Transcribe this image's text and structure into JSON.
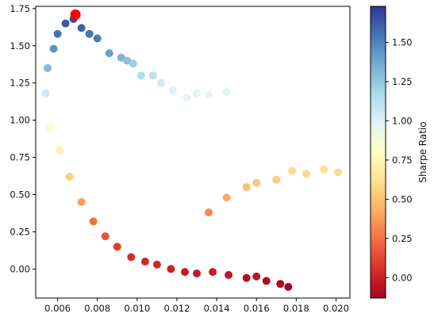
{
  "chart_data": {
    "type": "scatter",
    "title": "",
    "xlabel": "",
    "ylabel": "",
    "xlim": [
      0.0049,
      0.0207
    ],
    "ylim": [
      -0.195,
      1.765
    ],
    "x_ticks": [
      "0.006",
      "0.008",
      "0.010",
      "0.012",
      "0.014",
      "0.016",
      "0.018",
      "0.020"
    ],
    "y_ticks": [
      "0.00",
      "0.25",
      "0.50",
      "0.75",
      "1.00",
      "1.25",
      "1.50",
      "1.75"
    ],
    "grid": false,
    "colormap": "RdYlBu",
    "colorbar": {
      "label": "Sharpe Ratio",
      "range": [
        -0.13,
        1.73
      ],
      "ticks": [
        "0.00",
        "0.25",
        "0.50",
        "0.75",
        "1.00",
        "1.25",
        "1.50"
      ]
    },
    "series": [
      {
        "points": [
          {
            "x": 0.0054,
            "y": 1.18,
            "c": 1.05
          },
          {
            "x": 0.0055,
            "y": 1.35,
            "c": 1.3
          },
          {
            "x": 0.0056,
            "y": 0.95,
            "c": 0.85
          },
          {
            "x": 0.0058,
            "y": 1.48,
            "c": 1.45
          },
          {
            "x": 0.006,
            "y": 1.58,
            "c": 1.55
          },
          {
            "x": 0.0061,
            "y": 0.8,
            "c": 0.72
          },
          {
            "x": 0.0064,
            "y": 1.65,
            "c": 1.63
          },
          {
            "x": 0.0066,
            "y": 0.62,
            "c": 0.55
          },
          {
            "x": 0.0068,
            "y": 1.68,
            "c": 1.66
          },
          {
            "x": 0.0072,
            "y": 1.62,
            "c": 1.6
          },
          {
            "x": 0.0072,
            "y": 0.45,
            "c": 0.38
          },
          {
            "x": 0.0076,
            "y": 1.58,
            "c": 1.54
          },
          {
            "x": 0.0078,
            "y": 0.32,
            "c": 0.25
          },
          {
            "x": 0.008,
            "y": 1.55,
            "c": 1.53
          },
          {
            "x": 0.0084,
            "y": 0.22,
            "c": 0.16
          },
          {
            "x": 0.0086,
            "y": 1.45,
            "c": 1.4
          },
          {
            "x": 0.009,
            "y": 0.15,
            "c": 0.1
          },
          {
            "x": 0.0092,
            "y": 1.42,
            "c": 1.33
          },
          {
            "x": 0.0095,
            "y": 1.4,
            "c": 1.28
          },
          {
            "x": 0.0098,
            "y": 1.38,
            "c": 1.22
          },
          {
            "x": 0.0097,
            "y": 0.08,
            "c": 0.05
          },
          {
            "x": 0.0102,
            "y": 1.3,
            "c": 1.15
          },
          {
            "x": 0.0104,
            "y": 0.05,
            "c": 0.03
          },
          {
            "x": 0.0108,
            "y": 1.3,
            "c": 1.12
          },
          {
            "x": 0.0112,
            "y": 1.25,
            "c": 1.05
          },
          {
            "x": 0.011,
            "y": 0.03,
            "c": 0.02
          },
          {
            "x": 0.0118,
            "y": 1.2,
            "c": 1.0
          },
          {
            "x": 0.0117,
            "y": 0.0,
            "c": 0.0
          },
          {
            "x": 0.0125,
            "y": 1.15,
            "c": 0.95
          },
          {
            "x": 0.0124,
            "y": -0.02,
            "c": -0.02
          },
          {
            "x": 0.013,
            "y": 1.18,
            "c": 0.97
          },
          {
            "x": 0.013,
            "y": -0.03,
            "c": -0.03
          },
          {
            "x": 0.0136,
            "y": 1.17,
            "c": 0.96
          },
          {
            "x": 0.0138,
            "y": -0.02,
            "c": -0.02
          },
          {
            "x": 0.0145,
            "y": 1.19,
            "c": 0.98
          },
          {
            "x": 0.0146,
            "y": -0.04,
            "c": -0.04
          },
          {
            "x": 0.0155,
            "y": -0.06,
            "c": -0.07
          },
          {
            "x": 0.016,
            "y": -0.05,
            "c": -0.06
          },
          {
            "x": 0.0165,
            "y": -0.08,
            "c": -0.09
          },
          {
            "x": 0.0172,
            "y": -0.1,
            "c": -0.1
          },
          {
            "x": 0.0176,
            "y": -0.12,
            "c": -0.12
          },
          {
            "x": 0.0136,
            "y": 0.38,
            "c": 0.32
          },
          {
            "x": 0.0145,
            "y": 0.48,
            "c": 0.42
          },
          {
            "x": 0.0155,
            "y": 0.55,
            "c": 0.48
          },
          {
            "x": 0.016,
            "y": 0.58,
            "c": 0.52
          },
          {
            "x": 0.017,
            "y": 0.6,
            "c": 0.55
          },
          {
            "x": 0.0178,
            "y": 0.66,
            "c": 0.6
          },
          {
            "x": 0.0185,
            "y": 0.64,
            "c": 0.6
          },
          {
            "x": 0.0194,
            "y": 0.67,
            "c": 0.62
          },
          {
            "x": 0.0201,
            "y": 0.65,
            "c": 0.6
          }
        ],
        "highlight": {
          "x": 0.0069,
          "y": 1.71,
          "color": "#ff0000"
        }
      }
    ]
  }
}
